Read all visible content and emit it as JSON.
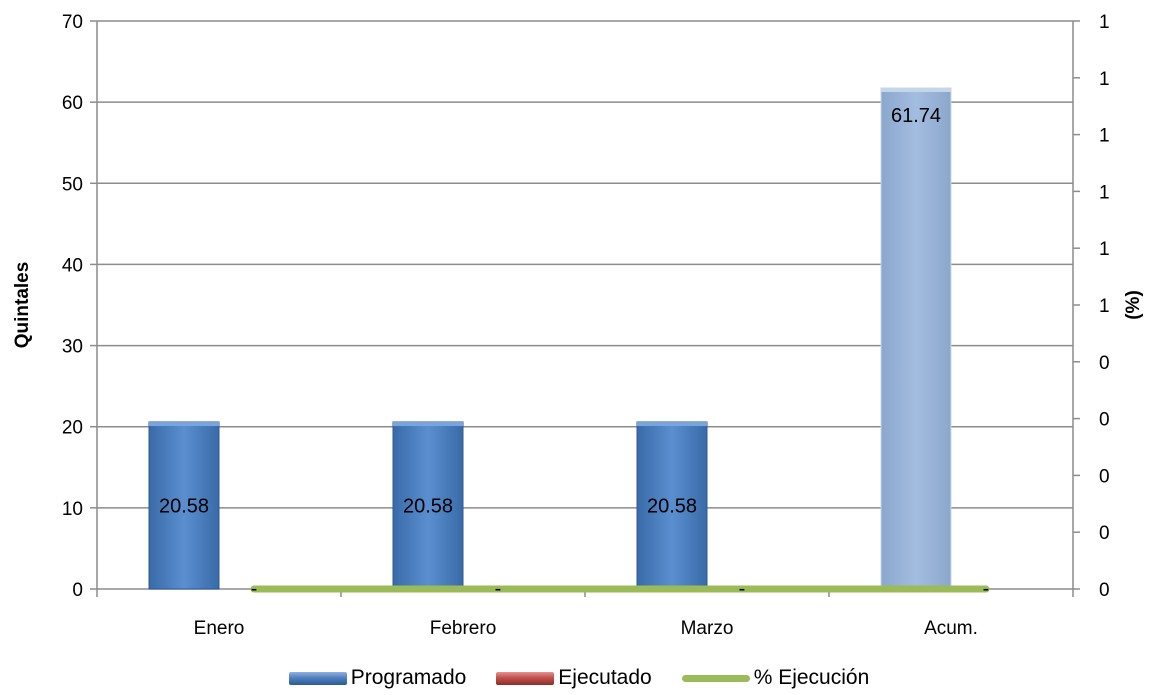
{
  "chart_data": {
    "type": "bar",
    "categories": [
      "Enero",
      "Febrero",
      "Marzo",
      "Acum."
    ],
    "series": [
      {
        "name": "Programado",
        "kind": "bar",
        "axis": "left",
        "values": [
          20.58,
          20.58,
          20.58,
          61.74
        ],
        "color": "#4f81bd",
        "acum_color": "#95b3d7",
        "labels": [
          "20.58",
          "20.58",
          "20.58",
          "61.74"
        ]
      },
      {
        "name": "Ejecutado",
        "kind": "bar",
        "axis": "left",
        "values": [
          0,
          0,
          0,
          0
        ],
        "color": "#c0504d",
        "labels": [
          "-",
          "-",
          "-",
          "-"
        ]
      },
      {
        "name": "% Ejecución",
        "kind": "line",
        "axis": "right",
        "values": [
          0,
          0,
          0,
          0
        ],
        "color": "#9bbb59"
      }
    ],
    "ylabel": "Quintales",
    "y2label": "(%)",
    "ylim": [
      0,
      70
    ],
    "yticks": [
      "0",
      "10",
      "20",
      "30",
      "40",
      "50",
      "60",
      "70"
    ],
    "y2ticks": [
      "0",
      "0",
      "0",
      "0",
      "0",
      "1",
      "1",
      "1",
      "1",
      "1",
      "1"
    ],
    "grid": true,
    "legend_position": "bottom"
  }
}
